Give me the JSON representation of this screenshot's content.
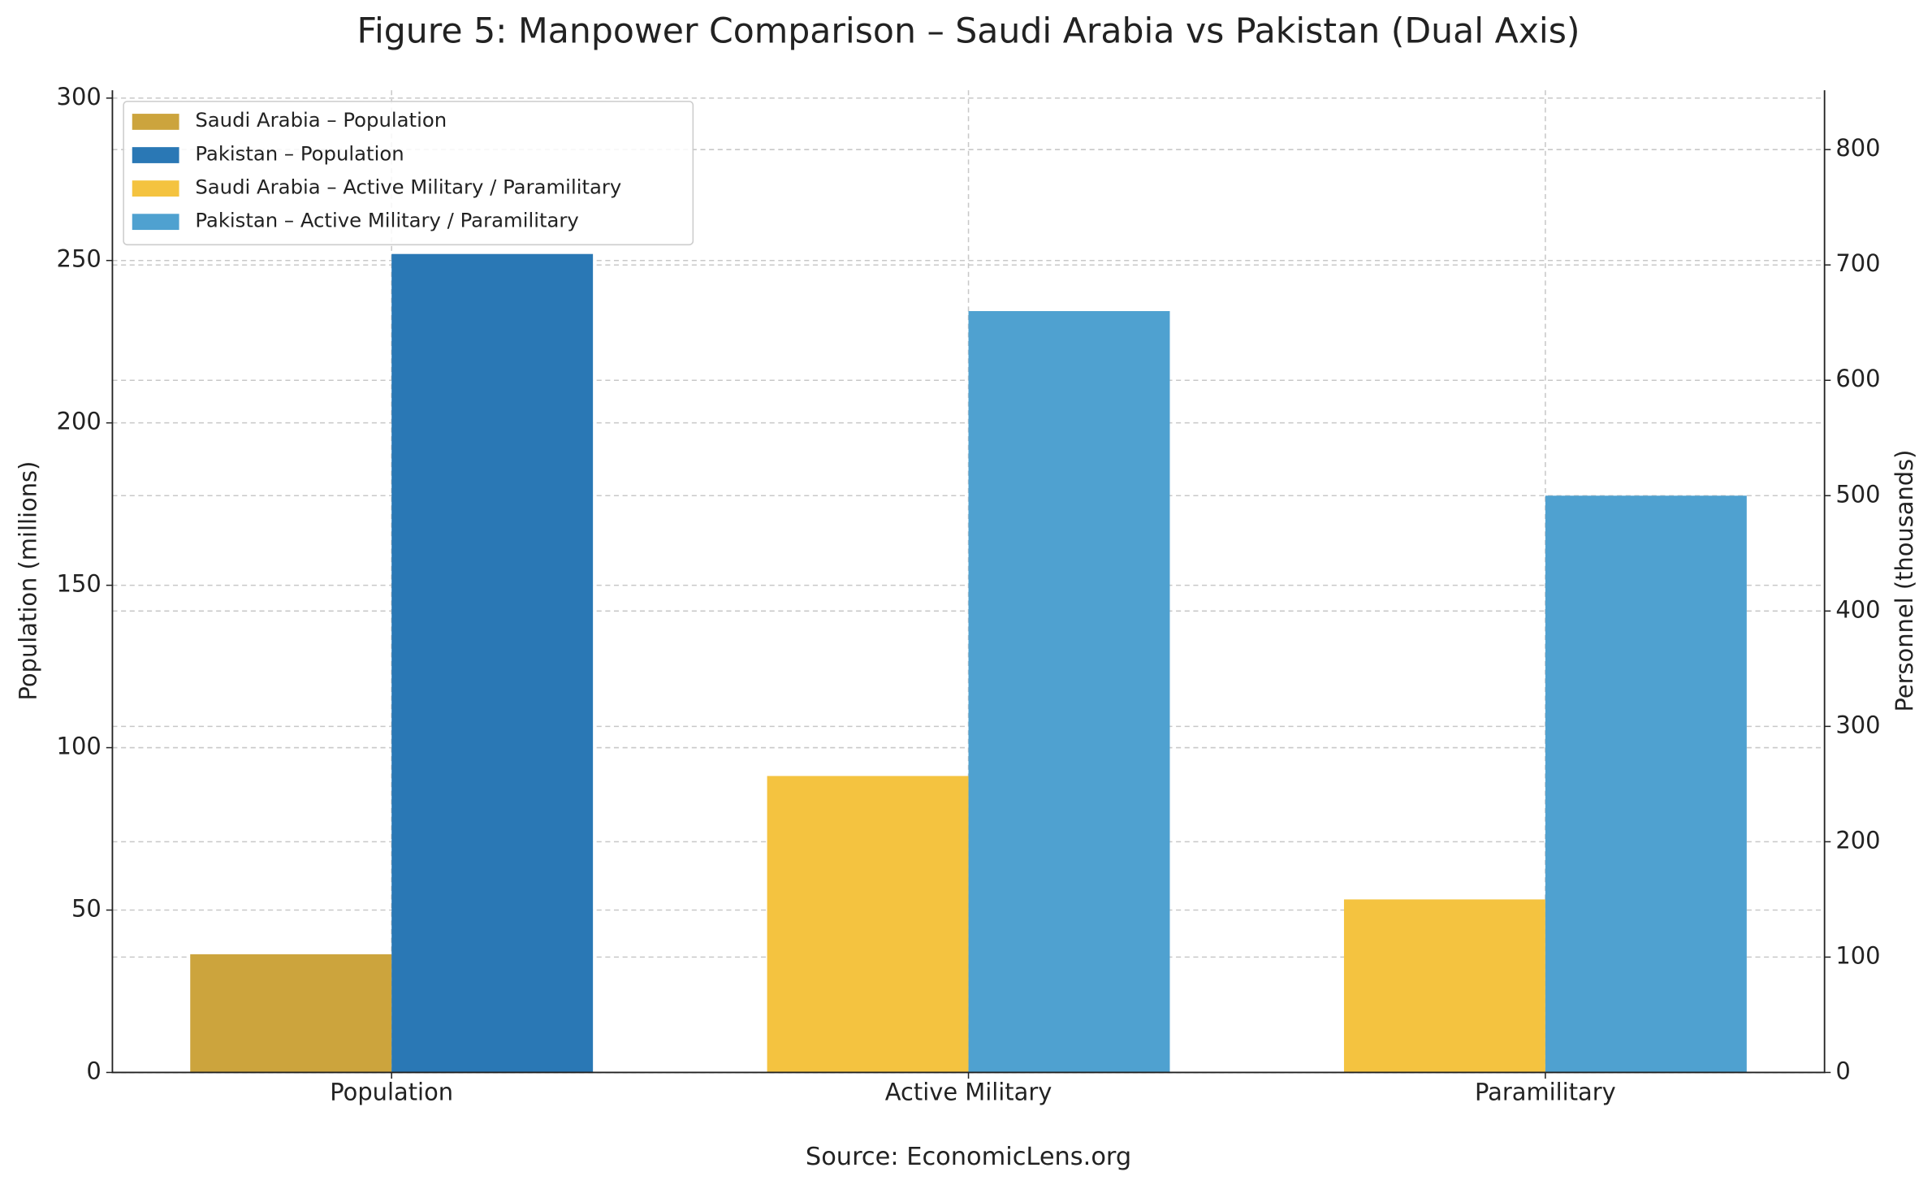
{
  "chart_data": {
    "type": "bar",
    "title": "Figure 5: Manpower Comparison – Saudi Arabia vs Pakistan (Dual Axis)",
    "categories": [
      "Population",
      "Active Military",
      "Paramilitary"
    ],
    "series": [
      {
        "name": "Saudi Arabia – Population",
        "color": "#cca43d",
        "axis": "y",
        "values": [
          36.4,
          null,
          null
        ]
      },
      {
        "name": "Pakistan – Population",
        "color": "#2a78b5",
        "axis": "y",
        "values": [
          252,
          null,
          null
        ]
      },
      {
        "name": "Saudi Arabia – Active Military / Paramilitary",
        "color": "#f4c340",
        "axis": "y2",
        "values": [
          null,
          257,
          150
        ]
      },
      {
        "name": "Pakistan – Active Military / Paramilitary",
        "color": "#4fa1d0",
        "axis": "y2",
        "values": [
          null,
          660,
          500
        ]
      }
    ],
    "ylabel": "Population (millions)",
    "y2label": "Personnel (thousands)",
    "ylim": [
      0,
      302.4
    ],
    "yticks": [
      0,
      50,
      100,
      150,
      200,
      250,
      300
    ],
    "y2lim": [
      0,
      851.4
    ],
    "y2ticks": [
      0,
      100,
      200,
      300,
      400,
      500,
      600,
      700,
      800
    ],
    "grid": true,
    "legend": "upper left",
    "source": "Source: EconomicLens.org"
  }
}
